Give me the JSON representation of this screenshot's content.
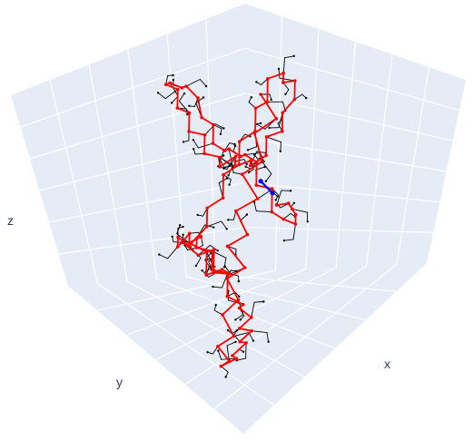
{
  "chart_data": {
    "type": "scatter3d",
    "axis_labels": {
      "x": "x",
      "y": "y",
      "z": "z"
    },
    "show_tick_labels": false,
    "grid": true,
    "colors": {
      "pane": "#e5ecf6",
      "grid": "#ffffff",
      "backbone": "#ff0000",
      "side_chain": "#000000",
      "highlight": "#0000ff"
    },
    "series": [
      {
        "role": "backbone",
        "color": "#ff0000",
        "points": [
          [
            0.34,
            0.18,
            0.68
          ],
          [
            0.4,
            0.16,
            0.6
          ],
          [
            0.35,
            0.22,
            0.55
          ],
          [
            0.42,
            0.25,
            0.5
          ],
          [
            0.37,
            0.3,
            0.45
          ],
          [
            0.45,
            0.3,
            0.4
          ],
          [
            0.4,
            0.36,
            0.36
          ],
          [
            0.48,
            0.38,
            0.33
          ],
          [
            0.44,
            0.44,
            0.3
          ],
          [
            0.53,
            0.44,
            0.27
          ],
          [
            0.5,
            0.5,
            0.25
          ],
          [
            0.58,
            0.52,
            0.23
          ],
          [
            0.56,
            0.58,
            0.2
          ],
          [
            0.64,
            0.6,
            0.18
          ],
          [
            0.62,
            0.66,
            0.17
          ],
          [
            0.7,
            0.68,
            0.18
          ],
          [
            0.72,
            0.74,
            0.22
          ],
          [
            0.78,
            0.72,
            0.28
          ],
          [
            0.8,
            0.76,
            0.34
          ],
          [
            0.84,
            0.73,
            0.4
          ],
          [
            0.86,
            0.78,
            0.46
          ],
          [
            0.9,
            0.76,
            0.52
          ],
          [
            0.9,
            0.82,
            0.58
          ],
          [
            0.94,
            0.8,
            0.64
          ],
          [
            0.92,
            0.84,
            0.7
          ],
          [
            0.96,
            0.86,
            0.76
          ],
          [
            0.92,
            0.9,
            0.8
          ],
          [
            0.88,
            0.86,
            0.84
          ],
          [
            0.84,
            0.9,
            0.86
          ],
          [
            0.8,
            0.86,
            0.88
          ],
          [
            0.76,
            0.9,
            0.9
          ],
          [
            0.72,
            0.86,
            0.88
          ],
          [
            0.7,
            0.82,
            0.84
          ],
          [
            0.66,
            0.84,
            0.8
          ],
          [
            0.62,
            0.8,
            0.78
          ],
          [
            0.6,
            0.84,
            0.74
          ],
          [
            0.56,
            0.8,
            0.72
          ],
          [
            0.58,
            0.76,
            0.66
          ],
          [
            0.52,
            0.74,
            0.62
          ],
          [
            0.56,
            0.7,
            0.56
          ],
          [
            0.6,
            0.66,
            0.58
          ],
          [
            0.64,
            0.7,
            0.54
          ],
          [
            0.66,
            0.64,
            0.5
          ],
          [
            0.6,
            0.62,
            0.46
          ],
          [
            0.56,
            0.66,
            0.44
          ],
          [
            0.52,
            0.62,
            0.48
          ],
          [
            0.48,
            0.66,
            0.52
          ],
          [
            0.5,
            0.6,
            0.56
          ],
          [
            0.46,
            0.56,
            0.58
          ],
          [
            0.5,
            0.52,
            0.62
          ],
          [
            0.46,
            0.48,
            0.66
          ],
          [
            0.5,
            0.44,
            0.7
          ],
          [
            0.46,
            0.4,
            0.74
          ],
          [
            0.5,
            0.36,
            0.78
          ],
          [
            0.46,
            0.32,
            0.82
          ],
          [
            0.5,
            0.3,
            0.86
          ],
          [
            0.46,
            0.26,
            0.9
          ],
          [
            0.5,
            0.22,
            0.92
          ],
          [
            0.54,
            0.26,
            0.94
          ],
          [
            0.58,
            0.24,
            0.96
          ],
          [
            0.62,
            0.28,
            0.94
          ],
          [
            0.6,
            0.32,
            0.9
          ],
          [
            0.64,
            0.36,
            0.88
          ],
          [
            0.6,
            0.4,
            0.86
          ],
          [
            0.64,
            0.44,
            0.84
          ],
          [
            0.6,
            0.48,
            0.8
          ],
          [
            0.56,
            0.44,
            0.76
          ],
          [
            0.52,
            0.48,
            0.74
          ],
          [
            0.48,
            0.44,
            0.7
          ],
          [
            0.44,
            0.4,
            0.66
          ],
          [
            0.4,
            0.44,
            0.62
          ],
          [
            0.36,
            0.4,
            0.6
          ],
          [
            0.32,
            0.44,
            0.62
          ],
          [
            0.28,
            0.4,
            0.64
          ],
          [
            0.24,
            0.44,
            0.66
          ],
          [
            0.2,
            0.4,
            0.68
          ],
          [
            0.18,
            0.44,
            0.72
          ],
          [
            0.14,
            0.4,
            0.74
          ],
          [
            0.12,
            0.44,
            0.78
          ],
          [
            0.1,
            0.4,
            0.74
          ],
          [
            0.12,
            0.36,
            0.7
          ],
          [
            0.1,
            0.32,
            0.66
          ],
          [
            0.14,
            0.3,
            0.62
          ],
          [
            0.18,
            0.32,
            0.58
          ],
          [
            0.22,
            0.3,
            0.56
          ],
          [
            0.26,
            0.34,
            0.54
          ],
          [
            0.3,
            0.32,
            0.52
          ],
          [
            0.28,
            0.28,
            0.48
          ],
          [
            0.32,
            0.26,
            0.46
          ],
          [
            0.3,
            0.22,
            0.42
          ],
          [
            0.34,
            0.2,
            0.4
          ],
          [
            0.38,
            0.24,
            0.36
          ],
          [
            0.42,
            0.2,
            0.34
          ],
          [
            0.46,
            0.24,
            0.3
          ],
          [
            0.5,
            0.22,
            0.28
          ],
          [
            0.52,
            0.18,
            0.24
          ],
          [
            0.48,
            0.14,
            0.22
          ],
          [
            0.44,
            0.12,
            0.2
          ],
          [
            0.4,
            0.1,
            0.18
          ],
          [
            0.36,
            0.12,
            0.16
          ]
        ]
      },
      {
        "role": "highlight",
        "color": "#0000ff",
        "points": [
          [
            0.34,
            0.18,
            0.3
          ],
          [
            0.38,
            0.16,
            0.26
          ]
        ]
      }
    ]
  }
}
